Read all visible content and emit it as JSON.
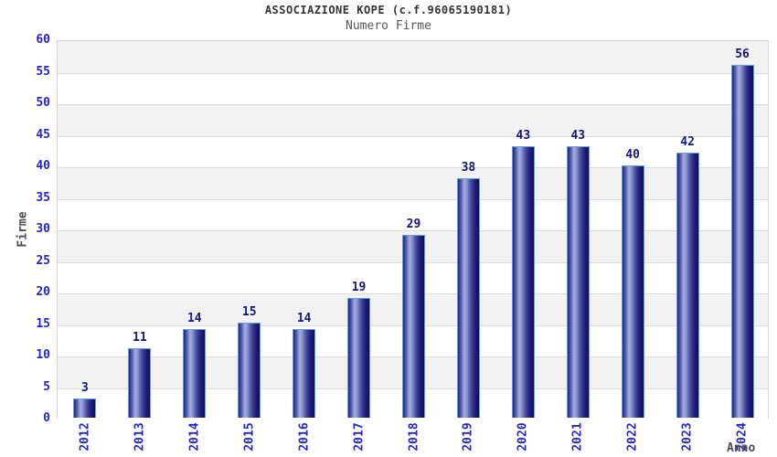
{
  "chart_data": {
    "type": "bar",
    "title": "ASSOCIAZIONE KOPE (c.f.96065190181)",
    "subtitle": "Numero Firme",
    "xlabel": "Anno",
    "ylabel": "Firme",
    "categories": [
      "2012",
      "2013",
      "2014",
      "2015",
      "2016",
      "2017",
      "2018",
      "2019",
      "2020",
      "2021",
      "2022",
      "2023",
      "2024"
    ],
    "values": [
      3,
      11,
      14,
      15,
      14,
      19,
      29,
      38,
      43,
      43,
      40,
      42,
      56
    ],
    "ylim": [
      0,
      60
    ],
    "ytick_step": 5,
    "yticks": [
      0,
      5,
      10,
      15,
      20,
      25,
      30,
      35,
      40,
      45,
      50,
      55,
      60
    ],
    "grid": "horizontal",
    "legend": null,
    "colors": {
      "tick_label_blue": "#2525d0",
      "value_label_navy": "#15157d",
      "bar_border": "#5ea0e6",
      "bar_gradient": [
        "#26267e",
        "#4a52a2",
        "#a4aedd",
        "#8b94cf",
        "#555ead",
        "#30308c",
        "#1b1b6e",
        "#101054"
      ],
      "band_gray": "#f2f2f2",
      "band_white": "#ffffff",
      "gridline": "#dcdcdc",
      "plot_border": "#d6d6d6",
      "title_color": "#333333",
      "subtitle_color": "#555555",
      "axis_title_color": "#4d4d4d"
    }
  }
}
